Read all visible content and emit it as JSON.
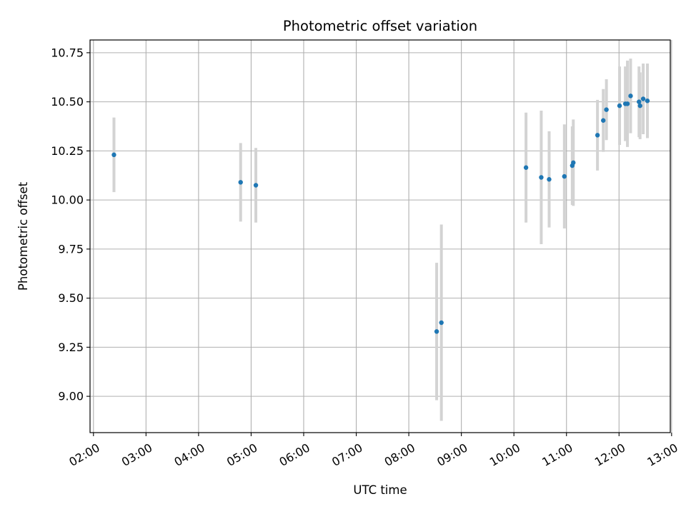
{
  "chart_data": {
    "type": "scatter",
    "title": "Photometric offset variation",
    "xlabel": "UTC time",
    "ylabel": "Photometric offset",
    "x_unit": "hours (UTC)",
    "xlim": [
      1.935,
      12.975
    ],
    "ylim": [
      8.815,
      10.815
    ],
    "grid": true,
    "x_ticks": [
      {
        "value": 2,
        "label": "02:00"
      },
      {
        "value": 3,
        "label": "03:00"
      },
      {
        "value": 4,
        "label": "04:00"
      },
      {
        "value": 5,
        "label": "05:00"
      },
      {
        "value": 6,
        "label": "06:00"
      },
      {
        "value": 7,
        "label": "07:00"
      },
      {
        "value": 8,
        "label": "08:00"
      },
      {
        "value": 9,
        "label": "09:00"
      },
      {
        "value": 10,
        "label": "10:00"
      },
      {
        "value": 11,
        "label": "11:00"
      },
      {
        "value": 12,
        "label": "12:00"
      },
      {
        "value": 13,
        "label": "13:00"
      }
    ],
    "y_ticks": [
      {
        "value": 9.0,
        "label": "9.00"
      },
      {
        "value": 9.25,
        "label": "9.25"
      },
      {
        "value": 9.5,
        "label": "9.50"
      },
      {
        "value": 9.75,
        "label": "9.75"
      },
      {
        "value": 10.0,
        "label": "10.00"
      },
      {
        "value": 10.25,
        "label": "10.25"
      },
      {
        "value": 10.5,
        "label": "10.50"
      },
      {
        "value": 10.75,
        "label": "10.75"
      }
    ],
    "colors": {
      "point": "#1f77b4",
      "errorbar": "#d3d3d3",
      "grid": "#b0b0b0",
      "axis": "#000000"
    },
    "points": [
      {
        "x": 2.39,
        "y": 10.23,
        "err": 0.19
      },
      {
        "x": 4.8,
        "y": 10.09,
        "err": 0.2
      },
      {
        "x": 5.09,
        "y": 10.075,
        "err": 0.19
      },
      {
        "x": 8.53,
        "y": 9.33,
        "err": 0.35
      },
      {
        "x": 8.62,
        "y": 9.375,
        "err": 0.5
      },
      {
        "x": 10.23,
        "y": 10.165,
        "err": 0.28
      },
      {
        "x": 10.52,
        "y": 10.115,
        "err": 0.34
      },
      {
        "x": 10.67,
        "y": 10.105,
        "err": 0.245
      },
      {
        "x": 10.96,
        "y": 10.12,
        "err": 0.265
      },
      {
        "x": 11.11,
        "y": 10.175,
        "err": 0.2
      },
      {
        "x": 11.13,
        "y": 10.19,
        "err": 0.22
      },
      {
        "x": 11.59,
        "y": 10.33,
        "err": 0.18
      },
      {
        "x": 11.7,
        "y": 10.405,
        "err": 0.16
      },
      {
        "x": 11.76,
        "y": 10.46,
        "err": 0.155
      },
      {
        "x": 12.01,
        "y": 10.48,
        "err": 0.2
      },
      {
        "x": 12.12,
        "y": 10.49,
        "err": 0.19
      },
      {
        "x": 12.16,
        "y": 10.49,
        "err": 0.22
      },
      {
        "x": 12.22,
        "y": 10.53,
        "err": 0.19
      },
      {
        "x": 12.38,
        "y": 10.5,
        "err": 0.18
      },
      {
        "x": 12.4,
        "y": 10.48,
        "err": 0.17
      },
      {
        "x": 12.46,
        "y": 10.515,
        "err": 0.18
      },
      {
        "x": 12.54,
        "y": 10.505,
        "err": 0.19
      }
    ]
  }
}
